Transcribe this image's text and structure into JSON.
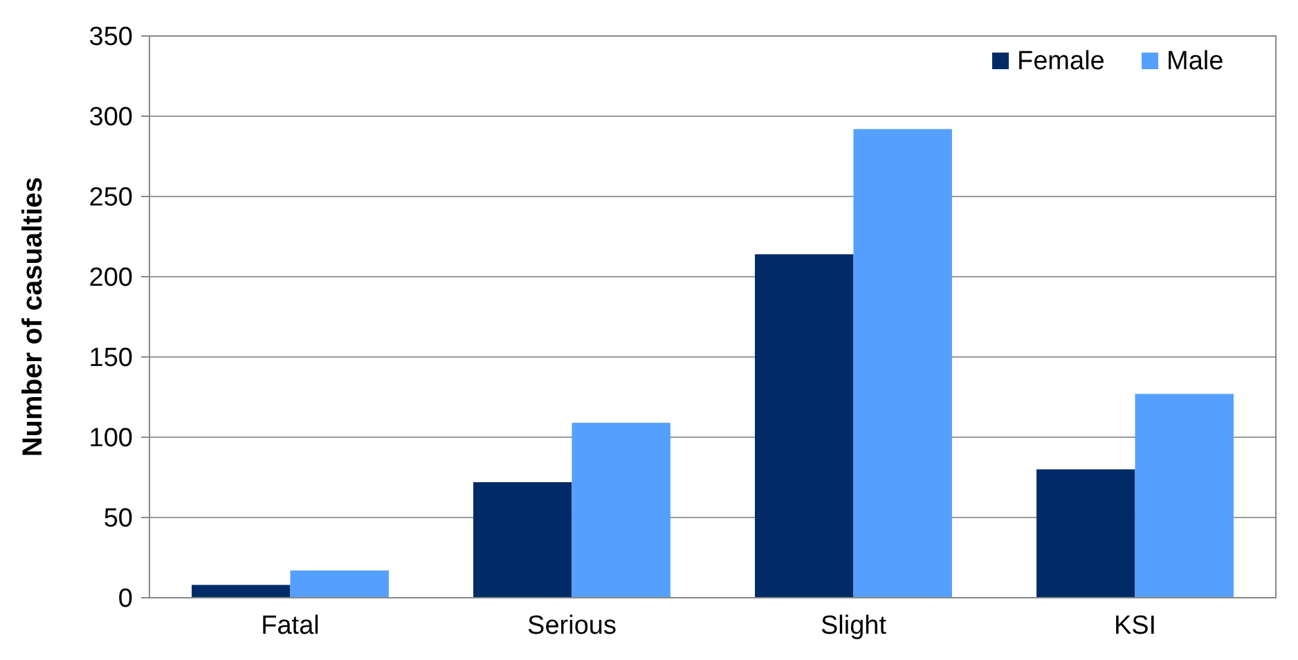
{
  "chart_data": {
    "type": "bar",
    "ylabel": "Number of casualties",
    "categories": [
      "Fatal",
      "Serious",
      "Slight",
      "KSI"
    ],
    "series": [
      {
        "name": "Female",
        "color": "#002b66",
        "values": [
          8,
          72,
          214,
          80
        ]
      },
      {
        "name": "Male",
        "color": "#55a0ff",
        "values": [
          17,
          109,
          292,
          127
        ]
      }
    ],
    "ylim": [
      0,
      350
    ],
    "yticks": [
      0,
      50,
      100,
      150,
      200,
      250,
      300,
      350
    ],
    "grid": "y",
    "legend": "top right"
  }
}
